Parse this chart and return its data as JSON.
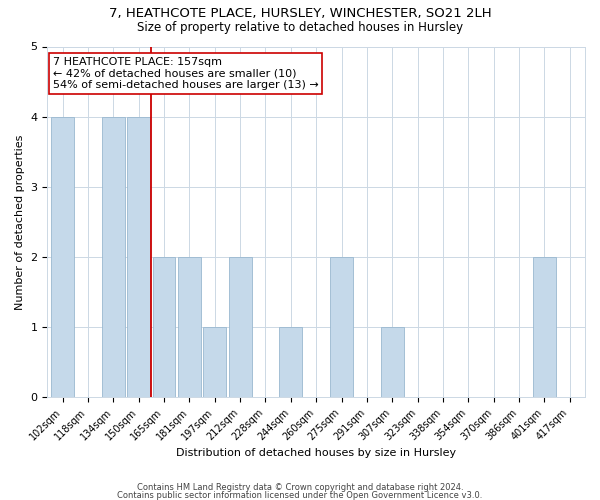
{
  "title": "7, HEATHCOTE PLACE, HURSLEY, WINCHESTER, SO21 2LH",
  "subtitle": "Size of property relative to detached houses in Hursley",
  "xlabel": "Distribution of detached houses by size in Hursley",
  "ylabel": "Number of detached properties",
  "categories": [
    "102sqm",
    "118sqm",
    "134sqm",
    "150sqm",
    "165sqm",
    "181sqm",
    "197sqm",
    "212sqm",
    "228sqm",
    "244sqm",
    "260sqm",
    "275sqm",
    "291sqm",
    "307sqm",
    "323sqm",
    "338sqm",
    "354sqm",
    "370sqm",
    "386sqm",
    "401sqm",
    "417sqm"
  ],
  "values": [
    4,
    0,
    4,
    4,
    2,
    2,
    1,
    2,
    0,
    1,
    0,
    2,
    0,
    1,
    0,
    0,
    0,
    0,
    0,
    2,
    0
  ],
  "bar_color": "#c5d9ea",
  "bar_edge_color": "#9ab8d0",
  "vline_x_idx": 3.5,
  "vline_color": "#cc0000",
  "annotation_line1": "7 HEATHCOTE PLACE: 157sqm",
  "annotation_line2": "← 42% of detached houses are smaller (10)",
  "annotation_line3": "54% of semi-detached houses are larger (13) →",
  "annotation_box_color": "#cc0000",
  "annotation_box_fill": "#ffffff",
  "ylim": [
    0,
    5
  ],
  "yticks": [
    0,
    1,
    2,
    3,
    4,
    5
  ],
  "footer1": "Contains HM Land Registry data © Crown copyright and database right 2024.",
  "footer2": "Contains public sector information licensed under the Open Government Licence v3.0.",
  "background_color": "#ffffff",
  "grid_color": "#ccd8e4",
  "title_fontsize": 9.5,
  "subtitle_fontsize": 8.5,
  "axis_label_fontsize": 8,
  "tick_fontsize": 7,
  "footer_fontsize": 6,
  "annotation_fontsize": 8
}
